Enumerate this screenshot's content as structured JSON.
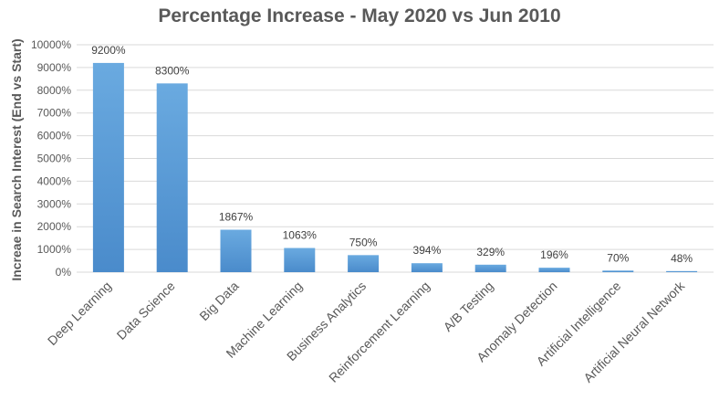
{
  "chart_data": {
    "type": "bar",
    "title": "Percentage Increase - May 2020 vs Jun 2010",
    "xlabel": "",
    "ylabel": "Increae in Search Interest (End vs Start)",
    "categories": [
      "Deep Learning",
      "Data Science",
      "Big Data",
      "Machine Learning",
      "Business Analytics",
      "Reinforcement Learning",
      "A/B Testing",
      "Anomaly Detection",
      "Artificial Intelligence",
      "Artificial Neural Network"
    ],
    "values": [
      9200,
      8300,
      1867,
      1063,
      750,
      394,
      329,
      196,
      70,
      48
    ],
    "data_labels": [
      "9200%",
      "8300%",
      "1867%",
      "1063%",
      "750%",
      "394%",
      "329%",
      "196%",
      "70%",
      "48%"
    ],
    "ylim": [
      0,
      10000
    ],
    "y_ticks": [
      0,
      1000,
      2000,
      3000,
      4000,
      5000,
      6000,
      7000,
      8000,
      9000,
      10000
    ],
    "y_tick_labels": [
      "0%",
      "1000%",
      "2000%",
      "3000%",
      "4000%",
      "5000%",
      "6000%",
      "7000%",
      "8000%",
      "9000%",
      "10000%"
    ],
    "grid": true,
    "legend": "none",
    "colors": {
      "bar": "#5b9bd5",
      "bar_light": "#6aaae0",
      "bar_dark": "#4a8bcb",
      "grid": "#d9d9d9",
      "axis": "#d9d9d9"
    }
  }
}
